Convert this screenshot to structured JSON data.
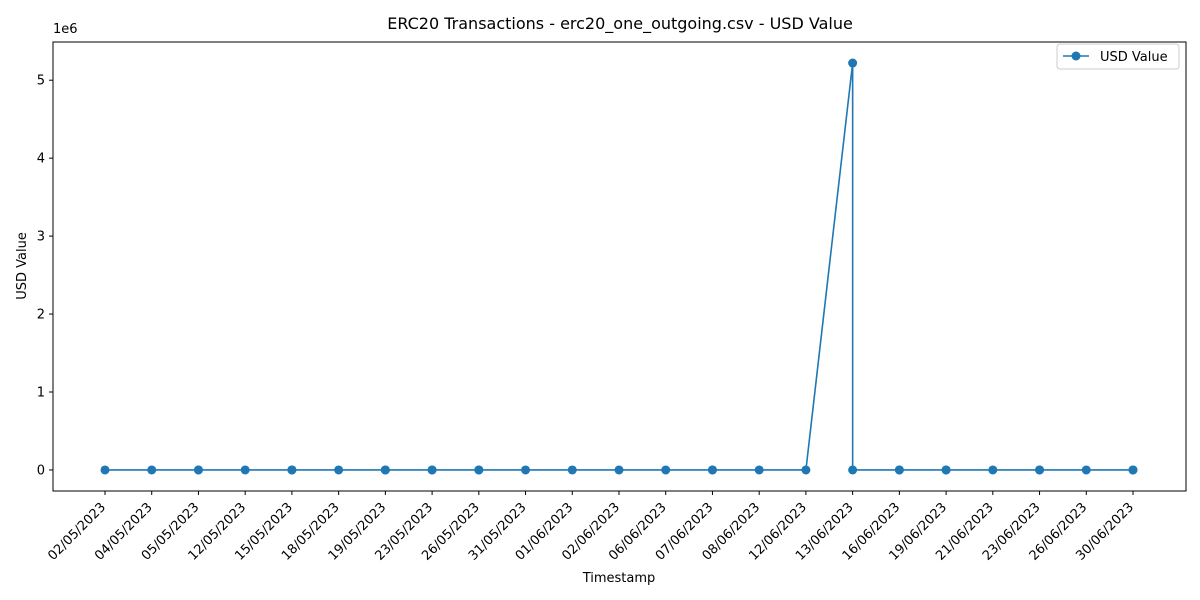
{
  "chart_data": {
    "type": "line",
    "title": "ERC20 Transactions - erc20_one_outgoing.csv - USD Value",
    "xlabel": "Timestamp",
    "ylabel": "USD Value",
    "y_offset_label": "1e6",
    "y_tick_labels": [
      "0",
      "1",
      "2",
      "3",
      "4",
      "5"
    ],
    "y_ticks_units": [
      0,
      1,
      2,
      3,
      4,
      5
    ],
    "ylim_units": [
      -0.27,
      5.49
    ],
    "legend_position": "top-right",
    "grid": false,
    "categories": [
      "02/05/2023",
      "04/05/2023",
      "05/05/2023",
      "12/05/2023",
      "15/05/2023",
      "18/05/2023",
      "19/05/2023",
      "23/05/2023",
      "26/05/2023",
      "31/05/2023",
      "01/06/2023",
      "02/06/2023",
      "06/06/2023",
      "07/06/2023",
      "08/06/2023",
      "12/06/2023",
      "13/06/2023",
      "16/06/2023",
      "19/06/2023",
      "21/06/2023",
      "23/06/2023",
      "26/06/2023",
      "30/06/2023"
    ],
    "series": [
      {
        "name": "USD Value",
        "color": "#1f77b4",
        "points": [
          {
            "x": "02/05/2023",
            "y": 0
          },
          {
            "x": "04/05/2023",
            "y": 0
          },
          {
            "x": "05/05/2023",
            "y": 0
          },
          {
            "x": "05/05/2023",
            "y": 0
          },
          {
            "x": "12/05/2023",
            "y": 0
          },
          {
            "x": "15/05/2023",
            "y": 0
          },
          {
            "x": "15/05/2023",
            "y": 0
          },
          {
            "x": "18/05/2023",
            "y": 0
          },
          {
            "x": "19/05/2023",
            "y": 0
          },
          {
            "x": "19/05/2023",
            "y": 0
          },
          {
            "x": "23/05/2023",
            "y": 0
          },
          {
            "x": "23/05/2023",
            "y": 0
          },
          {
            "x": "26/05/2023",
            "y": 0
          },
          {
            "x": "26/05/2023",
            "y": 0
          },
          {
            "x": "31/05/2023",
            "y": 0
          },
          {
            "x": "01/06/2023",
            "y": 0
          },
          {
            "x": "02/06/2023",
            "y": 0
          },
          {
            "x": "06/06/2023",
            "y": 0
          },
          {
            "x": "07/06/2023",
            "y": 0
          },
          {
            "x": "07/06/2023",
            "y": 0
          },
          {
            "x": "08/06/2023",
            "y": 0
          },
          {
            "x": "12/06/2023",
            "y": 0
          },
          {
            "x": "13/06/2023",
            "y": 5220000
          },
          {
            "x": "13/06/2023",
            "y": 0
          },
          {
            "x": "16/06/2023",
            "y": 0
          },
          {
            "x": "16/06/2023",
            "y": 0
          },
          {
            "x": "19/06/2023",
            "y": 0
          },
          {
            "x": "19/06/2023",
            "y": 0
          },
          {
            "x": "21/06/2023",
            "y": 0
          },
          {
            "x": "23/06/2023",
            "y": 0
          },
          {
            "x": "23/06/2023",
            "y": 0
          },
          {
            "x": "26/06/2023",
            "y": 0
          },
          {
            "x": "30/06/2023",
            "y": 0
          },
          {
            "x": "30/06/2023",
            "y": 0
          }
        ]
      }
    ]
  }
}
